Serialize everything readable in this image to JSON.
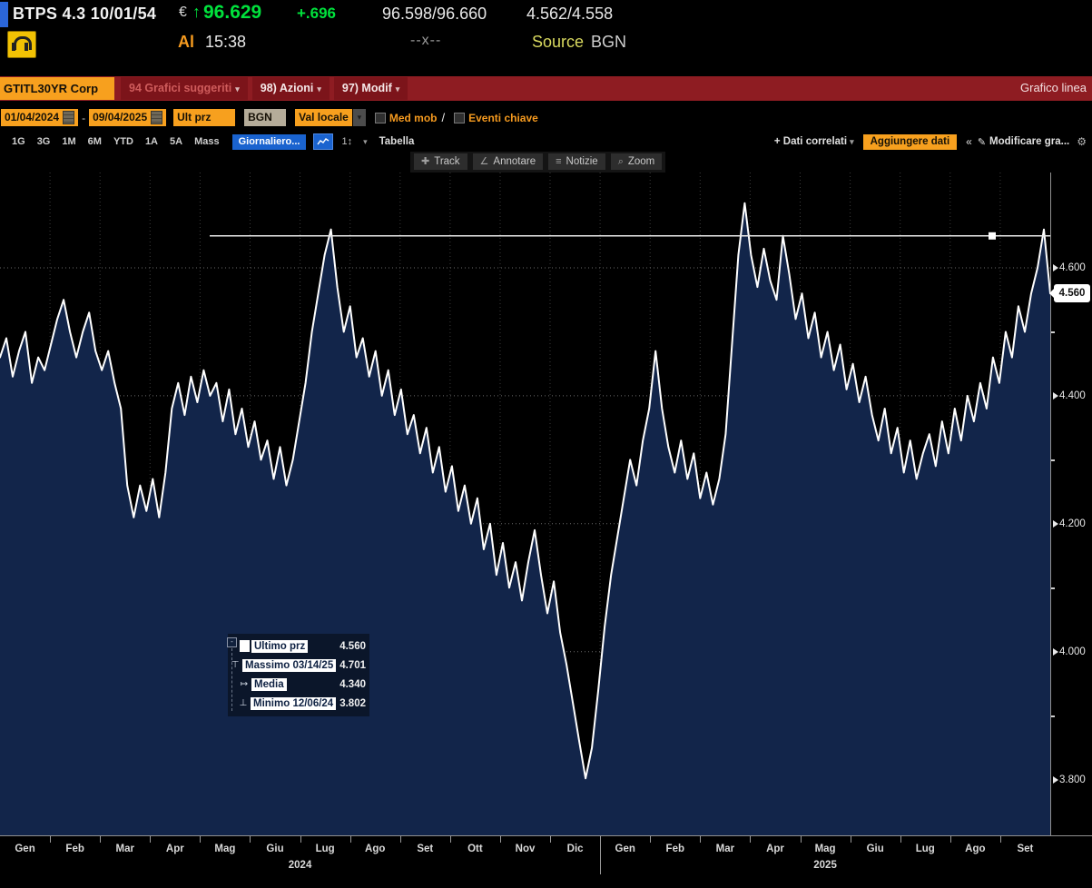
{
  "ticker_bar": {
    "security": "BTPS 4.3 10/01/54",
    "currency": "€",
    "direction_arrow": "↑",
    "last_price": "96.629",
    "change": "+.696",
    "bid_ask": "96.598/96.660",
    "yield_bid_ask": "4.562/4.558"
  },
  "status_bar": {
    "at_label": "Al",
    "time": "15:38",
    "market_indicator": "--x--",
    "source_label": "Source",
    "source_value": "BGN"
  },
  "menu_bar": {
    "security_field": "GTITL30YR Corp",
    "items": [
      {
        "label": "94 Grafici suggeriti",
        "arrow": "▾",
        "dimmed": true
      },
      {
        "label": "98) Azioni",
        "arrow": "▾",
        "dimmed": false
      },
      {
        "label": "97) Modif",
        "arrow": "▾",
        "dimmed": false
      }
    ],
    "title": "Grafico linea"
  },
  "options_bar": {
    "date_from": "01/04/2024",
    "date_separator": "-",
    "date_to": "09/04/2025",
    "price_field": "Ult prz",
    "source_field": "BGN",
    "currency_field": "Val locale",
    "dropdown_glyph": "▾",
    "checkboxes": [
      {
        "label": "Med mob",
        "line_sample": "/"
      },
      {
        "label": "Eventi chiave",
        "line_sample": ""
      }
    ]
  },
  "period_bar": {
    "ranges": [
      "1G",
      "3G",
      "1M",
      "6M",
      "YTD",
      "1A",
      "5A",
      "Mass"
    ],
    "frequency": "Giornaliero...",
    "interval_label": "1↕",
    "dropdown_arrow": "▾",
    "table_label": "Tabella",
    "related_data": "+ Dati correlati",
    "related_arrow": "▾",
    "add_data": "Aggiungere dati",
    "collapse": "«",
    "pencil": "✎",
    "modify_chart": "Modificare gra...",
    "gear": "⚙"
  },
  "chart_toolbar": {
    "buttons": [
      {
        "icon": "track-crosshair",
        "glyph": "✚",
        "label": "Track"
      },
      {
        "icon": "annotate-angle",
        "glyph": "∠",
        "label": "Annotare"
      },
      {
        "icon": "news-lines",
        "glyph": "≡",
        "label": "Notizie"
      },
      {
        "icon": "zoom-magnifier",
        "glyph": "⌕",
        "label": "Zoom"
      }
    ]
  },
  "tooltip": {
    "rows": [
      {
        "icon": "swatch",
        "label": "Ultimo prz",
        "value": "4.560"
      },
      {
        "icon": "high-marker",
        "glyph": "⊤",
        "label": "Massimo 03/14/25",
        "value": "4.701"
      },
      {
        "icon": "mean-marker",
        "glyph": "↦",
        "label": "Media",
        "value": "4.340"
      },
      {
        "icon": "low-marker",
        "glyph": "⊥",
        "label": "Minimo 12/06/24",
        "value": "3.802"
      }
    ]
  },
  "chart_data": {
    "type": "area",
    "title": "GTITL30YR Corp - Grafico linea (yield %)",
    "legend_position": "tooltip-overlay",
    "grid": true,
    "line_color": "#ffffff",
    "fill_color": "#12254a",
    "background": "#000000",
    "x_axis": {
      "months": [
        "Gen",
        "Feb",
        "Mar",
        "Apr",
        "Mag",
        "Giu",
        "Lug",
        "Ago",
        "Set",
        "Ott",
        "Nov",
        "Dic",
        "Gen",
        "Feb",
        "Mar",
        "Apr",
        "Mag",
        "Giu",
        "Lug",
        "Ago",
        "Set"
      ],
      "years": [
        {
          "label": "2024",
          "boundary_slot": 6
        },
        {
          "label": "2025",
          "boundary_slot": 16.5
        }
      ],
      "year_divider_slot": 12
    },
    "y_axis": {
      "ticks": [
        4.6,
        4.4,
        4.2,
        4.0,
        3.8
      ],
      "minor_ticks": [
        4.5,
        4.3,
        4.1,
        3.9
      ],
      "range": [
        3.713,
        4.749
      ],
      "last_price_marker": "4.560"
    },
    "annotation_line": {
      "value": 4.65,
      "x_start_frac": 0.2,
      "handle_x_frac": 0.945
    },
    "stats": {
      "last": 4.56,
      "high_date": "03/14/25",
      "high": 4.701,
      "mean": 4.34,
      "low_date": "12/06/24",
      "low": 3.802
    },
    "series": [
      {
        "name": "Ultimo prz",
        "values": [
          4.46,
          4.49,
          4.43,
          4.47,
          4.5,
          4.42,
          4.46,
          4.44,
          4.48,
          4.52,
          4.55,
          4.5,
          4.46,
          4.5,
          4.53,
          4.47,
          4.44,
          4.47,
          4.42,
          4.38,
          4.26,
          4.21,
          4.26,
          4.22,
          4.27,
          4.21,
          4.28,
          4.38,
          4.42,
          4.37,
          4.43,
          4.39,
          4.44,
          4.4,
          4.42,
          4.36,
          4.41,
          4.34,
          4.38,
          4.32,
          4.36,
          4.3,
          4.33,
          4.27,
          4.32,
          4.26,
          4.3,
          4.36,
          4.42,
          4.5,
          4.56,
          4.62,
          4.66,
          4.57,
          4.5,
          4.54,
          4.46,
          4.49,
          4.43,
          4.47,
          4.4,
          4.44,
          4.37,
          4.41,
          4.34,
          4.37,
          4.31,
          4.35,
          4.28,
          4.32,
          4.25,
          4.29,
          4.22,
          4.26,
          4.2,
          4.24,
          4.16,
          4.2,
          4.12,
          4.17,
          4.1,
          4.14,
          4.08,
          4.14,
          4.19,
          4.12,
          4.06,
          4.11,
          4.03,
          3.98,
          3.92,
          3.86,
          3.802,
          3.85,
          3.94,
          4.04,
          4.12,
          4.18,
          4.24,
          4.3,
          4.26,
          4.33,
          4.38,
          4.47,
          4.38,
          4.32,
          4.28,
          4.33,
          4.27,
          4.31,
          4.24,
          4.28,
          4.23,
          4.27,
          4.34,
          4.48,
          4.62,
          4.701,
          4.62,
          4.57,
          4.63,
          4.58,
          4.55,
          4.65,
          4.59,
          4.52,
          4.56,
          4.49,
          4.53,
          4.46,
          4.5,
          4.44,
          4.48,
          4.41,
          4.45,
          4.39,
          4.43,
          4.37,
          4.33,
          4.38,
          4.31,
          4.35,
          4.28,
          4.33,
          4.27,
          4.31,
          4.34,
          4.29,
          4.36,
          4.31,
          4.38,
          4.33,
          4.4,
          4.36,
          4.42,
          4.38,
          4.46,
          4.42,
          4.5,
          4.46,
          4.54,
          4.5,
          4.56,
          4.6,
          4.66,
          4.56
        ]
      }
    ]
  }
}
